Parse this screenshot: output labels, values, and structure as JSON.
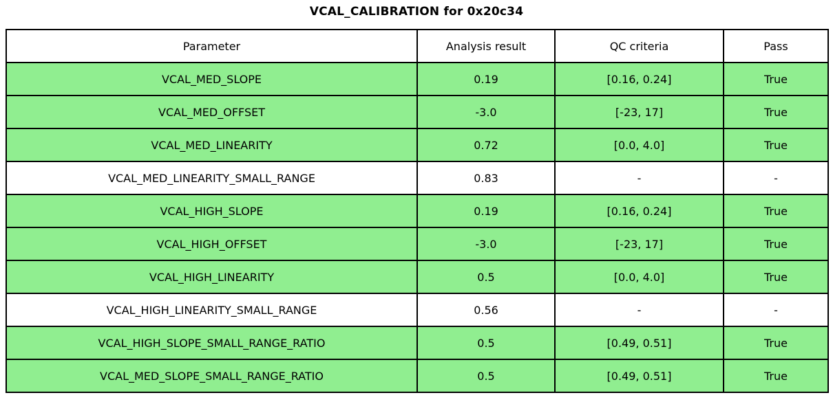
{
  "title": "VCAL_CALIBRATION for 0x20c34",
  "colors": {
    "pass_row_bg": "#90ee90",
    "neutral_row_bg": "#ffffff",
    "border": "#000000",
    "text": "#000000",
    "background": "#ffffff"
  },
  "chart_data": {
    "type": "table",
    "title": "VCAL_CALIBRATION for 0x20c34",
    "columns": [
      "Parameter",
      "Analysis result",
      "QC criteria",
      "Pass"
    ],
    "rows": [
      {
        "parameter": "VCAL_MED_SLOPE",
        "analysis_result": "0.19",
        "qc_criteria": "[0.16, 0.24]",
        "pass": "True",
        "highlighted": true
      },
      {
        "parameter": "VCAL_MED_OFFSET",
        "analysis_result": "-3.0",
        "qc_criteria": "[-23, 17]",
        "pass": "True",
        "highlighted": true
      },
      {
        "parameter": "VCAL_MED_LINEARITY",
        "analysis_result": "0.72",
        "qc_criteria": "[0.0, 4.0]",
        "pass": "True",
        "highlighted": true
      },
      {
        "parameter": "VCAL_MED_LINEARITY_SMALL_RANGE",
        "analysis_result": "0.83",
        "qc_criteria": "-",
        "pass": "-",
        "highlighted": false
      },
      {
        "parameter": "VCAL_HIGH_SLOPE",
        "analysis_result": "0.19",
        "qc_criteria": "[0.16, 0.24]",
        "pass": "True",
        "highlighted": true
      },
      {
        "parameter": "VCAL_HIGH_OFFSET",
        "analysis_result": "-3.0",
        "qc_criteria": "[-23, 17]",
        "pass": "True",
        "highlighted": true
      },
      {
        "parameter": "VCAL_HIGH_LINEARITY",
        "analysis_result": "0.5",
        "qc_criteria": "[0.0, 4.0]",
        "pass": "True",
        "highlighted": true
      },
      {
        "parameter": "VCAL_HIGH_LINEARITY_SMALL_RANGE",
        "analysis_result": "0.56",
        "qc_criteria": "-",
        "pass": "-",
        "highlighted": false
      },
      {
        "parameter": "VCAL_HIGH_SLOPE_SMALL_RANGE_RATIO",
        "analysis_result": "0.5",
        "qc_criteria": "[0.49, 0.51]",
        "pass": "True",
        "highlighted": true
      },
      {
        "parameter": "VCAL_MED_SLOPE_SMALL_RANGE_RATIO",
        "analysis_result": "0.5",
        "qc_criteria": "[0.49, 0.51]",
        "pass": "True",
        "highlighted": true
      }
    ]
  }
}
